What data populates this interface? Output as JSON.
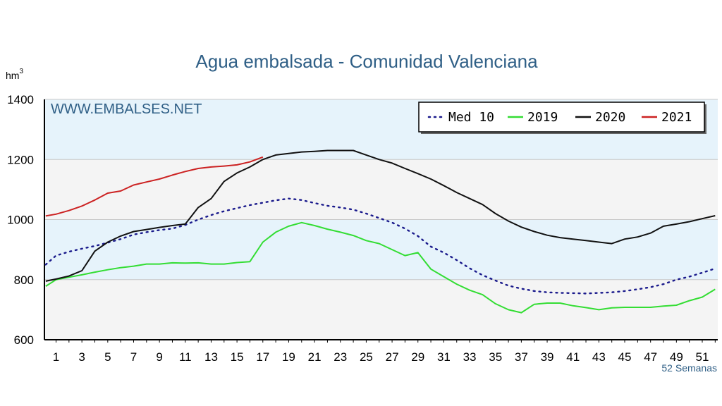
{
  "chart_data": {
    "type": "line",
    "title": "Agua embalsada - Comunidad Valenciana",
    "ylabel": "hm",
    "ylabel_sup": "3",
    "xlabel": "52 Semanas",
    "watermark": "WWW.EMBALSES.NET",
    "ylim": [
      600,
      1400
    ],
    "yticks": [
      600,
      800,
      1000,
      1200,
      1400
    ],
    "xlim": [
      0.1,
      52.2
    ],
    "xticks": [
      1,
      3,
      5,
      7,
      9,
      11,
      13,
      15,
      17,
      19,
      21,
      23,
      25,
      27,
      29,
      31,
      33,
      35,
      37,
      39,
      41,
      43,
      45,
      47,
      49,
      51
    ],
    "grid": true,
    "legend_position": "top-right",
    "series": [
      {
        "name": "Med 10",
        "color": "#1a1a8c",
        "style": "dotted",
        "x": [
          0.2,
          1,
          2,
          3,
          4,
          5,
          6,
          7,
          8,
          9,
          10,
          11,
          12,
          13,
          14,
          15,
          16,
          17,
          18,
          19,
          20,
          21,
          22,
          23,
          24,
          25,
          26,
          27,
          28,
          29,
          30,
          31,
          32,
          33,
          34,
          35,
          36,
          37,
          38,
          39,
          40,
          41,
          42,
          43,
          44,
          45,
          46,
          47,
          48,
          49,
          50,
          51,
          52
        ],
        "y": [
          850,
          880,
          893,
          903,
          912,
          923,
          935,
          950,
          958,
          965,
          970,
          982,
          1000,
          1015,
          1028,
          1038,
          1048,
          1056,
          1064,
          1070,
          1065,
          1055,
          1046,
          1040,
          1033,
          1020,
          1005,
          990,
          970,
          945,
          910,
          890,
          865,
          838,
          815,
          797,
          780,
          770,
          762,
          758,
          756,
          755,
          754,
          756,
          758,
          762,
          768,
          775,
          785,
          800,
          810,
          823,
          837
        ]
      },
      {
        "name": "2019",
        "color": "#33dd33",
        "style": "solid",
        "x": [
          0.2,
          1,
          2,
          3,
          4,
          5,
          6,
          7,
          8,
          9,
          10,
          11,
          12,
          13,
          14,
          15,
          16,
          17,
          18,
          19,
          20,
          21,
          22,
          23,
          24,
          25,
          26,
          27,
          28,
          29,
          30,
          31,
          32,
          33,
          34,
          35,
          36,
          37,
          38,
          39,
          40,
          41,
          42,
          43,
          44,
          45,
          46,
          47,
          48,
          49,
          50,
          51,
          52
        ],
        "y": [
          778,
          800,
          808,
          816,
          825,
          833,
          840,
          845,
          852,
          852,
          856,
          855,
          856,
          852,
          852,
          857,
          860,
          925,
          958,
          978,
          990,
          980,
          968,
          958,
          947,
          930,
          920,
          900,
          880,
          890,
          835,
          810,
          785,
          765,
          750,
          720,
          700,
          690,
          718,
          722,
          722,
          713,
          707,
          700,
          706,
          708,
          708,
          708,
          712,
          715,
          730,
          742,
          768
        ]
      },
      {
        "name": "2020",
        "color": "#111111",
        "style": "solid",
        "x": [
          0.2,
          1,
          2,
          3,
          4,
          5,
          6,
          7,
          8,
          9,
          10,
          11,
          12,
          13,
          14,
          15,
          16,
          17,
          18,
          19,
          20,
          21,
          22,
          23,
          24,
          25,
          26,
          27,
          28,
          29,
          30,
          31,
          32,
          33,
          34,
          35,
          36,
          37,
          38,
          39,
          40,
          41,
          42,
          43,
          44,
          45,
          46,
          47,
          48,
          49,
          50,
          51,
          52
        ],
        "y": [
          795,
          802,
          812,
          830,
          895,
          925,
          945,
          960,
          967,
          974,
          980,
          985,
          1040,
          1070,
          1127,
          1155,
          1175,
          1200,
          1215,
          1220,
          1225,
          1227,
          1230,
          1230,
          1230,
          1215,
          1200,
          1188,
          1170,
          1153,
          1135,
          1113,
          1090,
          1070,
          1050,
          1020,
          995,
          975,
          960,
          948,
          940,
          935,
          930,
          925,
          920,
          935,
          942,
          955,
          978,
          985,
          993,
          1003,
          1013
        ]
      },
      {
        "name": "2021",
        "color": "#cc2222",
        "style": "solid",
        "x": [
          0.2,
          1,
          2,
          3,
          4,
          5,
          6,
          7,
          8,
          9,
          10,
          11,
          12,
          13,
          14,
          15,
          16,
          17
        ],
        "y": [
          1012,
          1018,
          1030,
          1045,
          1065,
          1088,
          1095,
          1115,
          1125,
          1135,
          1148,
          1160,
          1170,
          1175,
          1178,
          1182,
          1192,
          1208
        ]
      }
    ]
  }
}
